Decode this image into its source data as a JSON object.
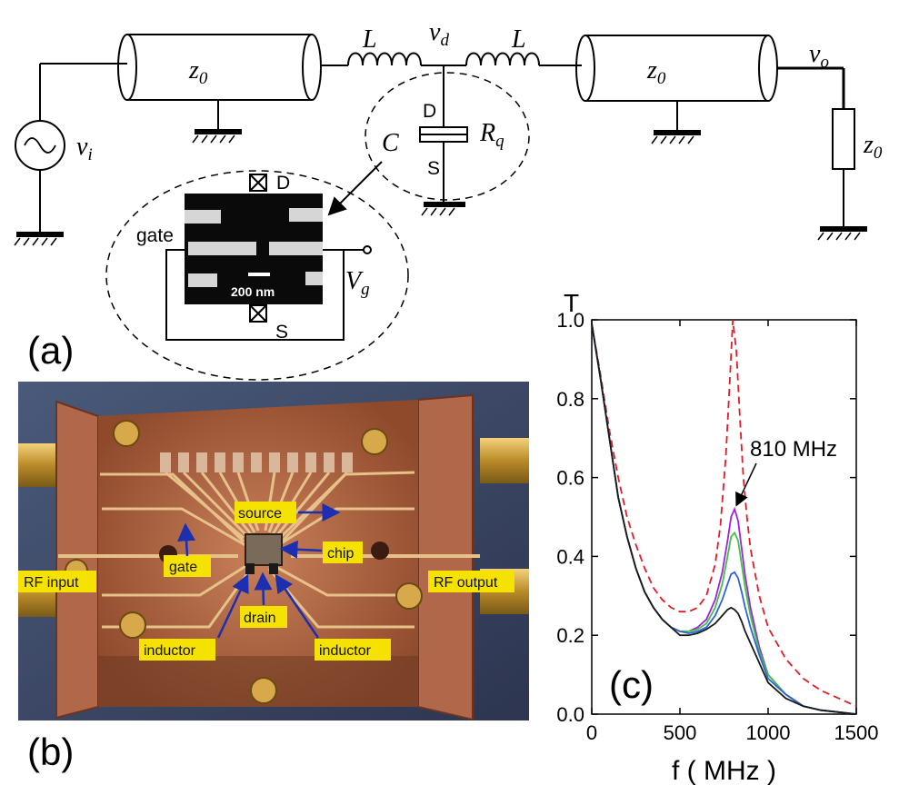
{
  "panel_a": {
    "label": "(a)",
    "symbols": {
      "vi": "v",
      "vi_sub": "i",
      "z0": "z",
      "z0_sub": "0",
      "L": "L",
      "vd": "v",
      "vd_sub": "d",
      "vo": "v",
      "vo_sub": "o",
      "D": "D",
      "S": "S",
      "Rq": "R",
      "Rq_sub": "q",
      "C": "C",
      "Vg": "V",
      "Vg_sub": "g",
      "gate": "gate",
      "scale": "200 nm"
    }
  },
  "panel_b": {
    "label": "(b)",
    "labels": {
      "rf_input": "RF input",
      "rf_output": "RF output",
      "source": "source",
      "gate": "gate",
      "chip": "chip",
      "drain": "drain",
      "inductor_left": "inductor",
      "inductor_right": "inductor"
    }
  },
  "panel_c": {
    "label": "(c)",
    "annotation": "810 MHz"
  },
  "chart_data": {
    "type": "line",
    "xlabel": "f ( MHz )",
    "ylabel": "T",
    "xlim": [
      0,
      1500
    ],
    "ylim": [
      0,
      1.0
    ],
    "xticks": [
      "0",
      "500",
      "1000",
      "1500"
    ],
    "yticks": [
      "0.0",
      "0.2",
      "0.4",
      "0.6",
      "0.8",
      "1.0"
    ],
    "annotation": {
      "text": "810 MHz",
      "x": 810,
      "y": 0.52
    },
    "series": [
      {
        "color": "#e01c2a",
        "dash": "8,5",
        "x": [
          0,
          50,
          100,
          150,
          200,
          250,
          300,
          350,
          400,
          450,
          500,
          550,
          600,
          650,
          700,
          730,
          760,
          780,
          800,
          820,
          840,
          860,
          880,
          900,
          950,
          1000,
          1100,
          1200,
          1300,
          1400,
          1500
        ],
        "y": [
          0.99,
          0.86,
          0.72,
          0.6,
          0.5,
          0.43,
          0.37,
          0.32,
          0.29,
          0.27,
          0.26,
          0.26,
          0.27,
          0.3,
          0.38,
          0.48,
          0.65,
          0.82,
          1.0,
          0.92,
          0.75,
          0.6,
          0.5,
          0.42,
          0.3,
          0.22,
          0.14,
          0.09,
          0.06,
          0.04,
          0.02
        ]
      },
      {
        "color": "#a020e0",
        "dash": "",
        "x": [
          0,
          50,
          100,
          150,
          200,
          250,
          300,
          350,
          400,
          450,
          500,
          550,
          600,
          650,
          700,
          740,
          770,
          790,
          810,
          830,
          850,
          870,
          900,
          950,
          1000,
          1100,
          1200,
          1300,
          1400,
          1500
        ],
        "y": [
          0.99,
          0.85,
          0.7,
          0.55,
          0.45,
          0.37,
          0.31,
          0.27,
          0.24,
          0.22,
          0.21,
          0.21,
          0.22,
          0.24,
          0.29,
          0.36,
          0.44,
          0.5,
          0.52,
          0.49,
          0.42,
          0.35,
          0.27,
          0.17,
          0.1,
          0.05,
          0.02,
          0.01,
          0.005,
          0.0
        ]
      },
      {
        "color": "#3ec43e",
        "dash": "",
        "x": [
          0,
          50,
          100,
          150,
          200,
          250,
          300,
          350,
          400,
          450,
          500,
          550,
          600,
          650,
          700,
          740,
          770,
          790,
          810,
          830,
          850,
          870,
          900,
          950,
          1000,
          1100,
          1200,
          1300,
          1400,
          1500
        ],
        "y": [
          0.99,
          0.85,
          0.7,
          0.55,
          0.45,
          0.37,
          0.31,
          0.27,
          0.24,
          0.22,
          0.21,
          0.21,
          0.215,
          0.23,
          0.27,
          0.33,
          0.4,
          0.45,
          0.46,
          0.44,
          0.38,
          0.32,
          0.25,
          0.16,
          0.1,
          0.05,
          0.02,
          0.01,
          0.005,
          0.0
        ]
      },
      {
        "color": "#2e62d8",
        "dash": "",
        "x": [
          0,
          50,
          100,
          150,
          200,
          250,
          300,
          350,
          400,
          450,
          500,
          550,
          600,
          650,
          700,
          740,
          770,
          790,
          810,
          830,
          850,
          870,
          900,
          950,
          1000,
          1100,
          1200,
          1300,
          1400,
          1500
        ],
        "y": [
          0.99,
          0.85,
          0.7,
          0.55,
          0.45,
          0.37,
          0.31,
          0.27,
          0.24,
          0.22,
          0.21,
          0.205,
          0.21,
          0.22,
          0.25,
          0.29,
          0.33,
          0.355,
          0.36,
          0.345,
          0.31,
          0.27,
          0.22,
          0.15,
          0.09,
          0.05,
          0.02,
          0.01,
          0.005,
          0.0
        ]
      },
      {
        "color": "#1a1a1a",
        "dash": "",
        "x": [
          0,
          50,
          100,
          150,
          200,
          250,
          300,
          350,
          400,
          450,
          500,
          550,
          600,
          650,
          700,
          740,
          770,
          790,
          810,
          830,
          850,
          870,
          900,
          950,
          1000,
          1100,
          1200,
          1300,
          1400,
          1500
        ],
        "y": [
          0.99,
          0.85,
          0.7,
          0.55,
          0.45,
          0.37,
          0.31,
          0.27,
          0.24,
          0.22,
          0.2,
          0.2,
          0.205,
          0.215,
          0.23,
          0.25,
          0.265,
          0.27,
          0.265,
          0.255,
          0.235,
          0.21,
          0.18,
          0.13,
          0.08,
          0.04,
          0.02,
          0.01,
          0.005,
          0.0
        ]
      }
    ]
  }
}
